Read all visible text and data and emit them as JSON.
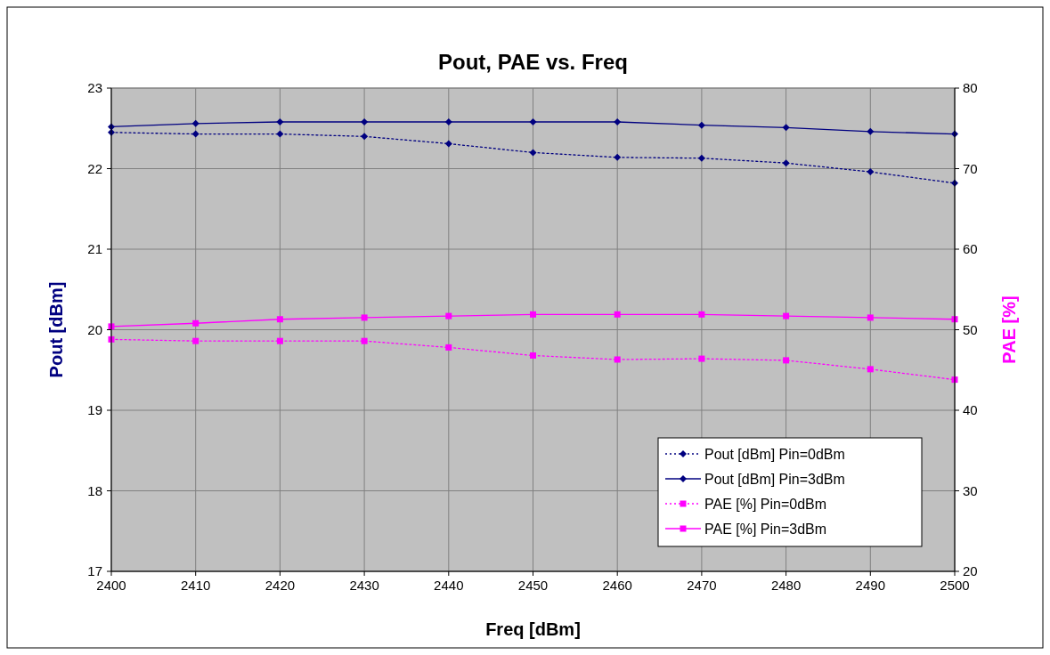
{
  "chart_data": {
    "type": "line",
    "title": "Pout, PAE vs. Freq",
    "xlabel": "Freq [dBm]",
    "ylabel": "Pout [dBm]",
    "y2label": "PAE [%]",
    "x": [
      2400,
      2410,
      2420,
      2430,
      2440,
      2450,
      2460,
      2470,
      2480,
      2490,
      2500
    ],
    "xlim": [
      2400,
      2500
    ],
    "xticks": [
      2400,
      2410,
      2420,
      2430,
      2440,
      2450,
      2460,
      2470,
      2480,
      2490,
      2500
    ],
    "ylim": [
      17,
      23
    ],
    "yticks": [
      17,
      18,
      19,
      20,
      21,
      22,
      23
    ],
    "y2lim": [
      20,
      80
    ],
    "y2ticks": [
      20,
      30,
      40,
      50,
      60,
      70,
      80
    ],
    "grid": true,
    "legend": "bottom right",
    "series": [
      {
        "name": "Pout [dBm] Pin=0dBm",
        "color": "#000080",
        "marker": "diamond",
        "line_style": "dotted",
        "values": [
          22.45,
          22.43,
          22.43,
          22.4,
          22.31,
          22.2,
          22.14,
          22.13,
          22.07,
          21.96,
          21.82
        ]
      },
      {
        "name": "Pout [dBm] Pin=3dBm",
        "color": "#000080",
        "marker": "diamond",
        "line_style": "solid",
        "values": [
          22.52,
          22.56,
          22.58,
          22.58,
          22.58,
          22.58,
          22.58,
          22.54,
          22.51,
          22.46,
          22.43
        ]
      },
      {
        "name": "PAE [%] Pin=0dBm",
        "color": "#ff00ff",
        "marker": "square",
        "line_style": "dotted",
        "axis": "y2",
        "values": [
          48.8,
          48.6,
          48.6,
          48.6,
          47.8,
          46.8,
          46.3,
          46.4,
          46.2,
          45.1,
          43.8
        ]
      },
      {
        "name": "PAE [%] Pin=3dBm",
        "color": "#ff00ff",
        "marker": "square",
        "line_style": "solid",
        "axis": "y2",
        "values": [
          50.4,
          50.8,
          51.3,
          51.5,
          51.7,
          51.9,
          51.9,
          51.9,
          51.7,
          51.5,
          51.3
        ]
      }
    ]
  }
}
